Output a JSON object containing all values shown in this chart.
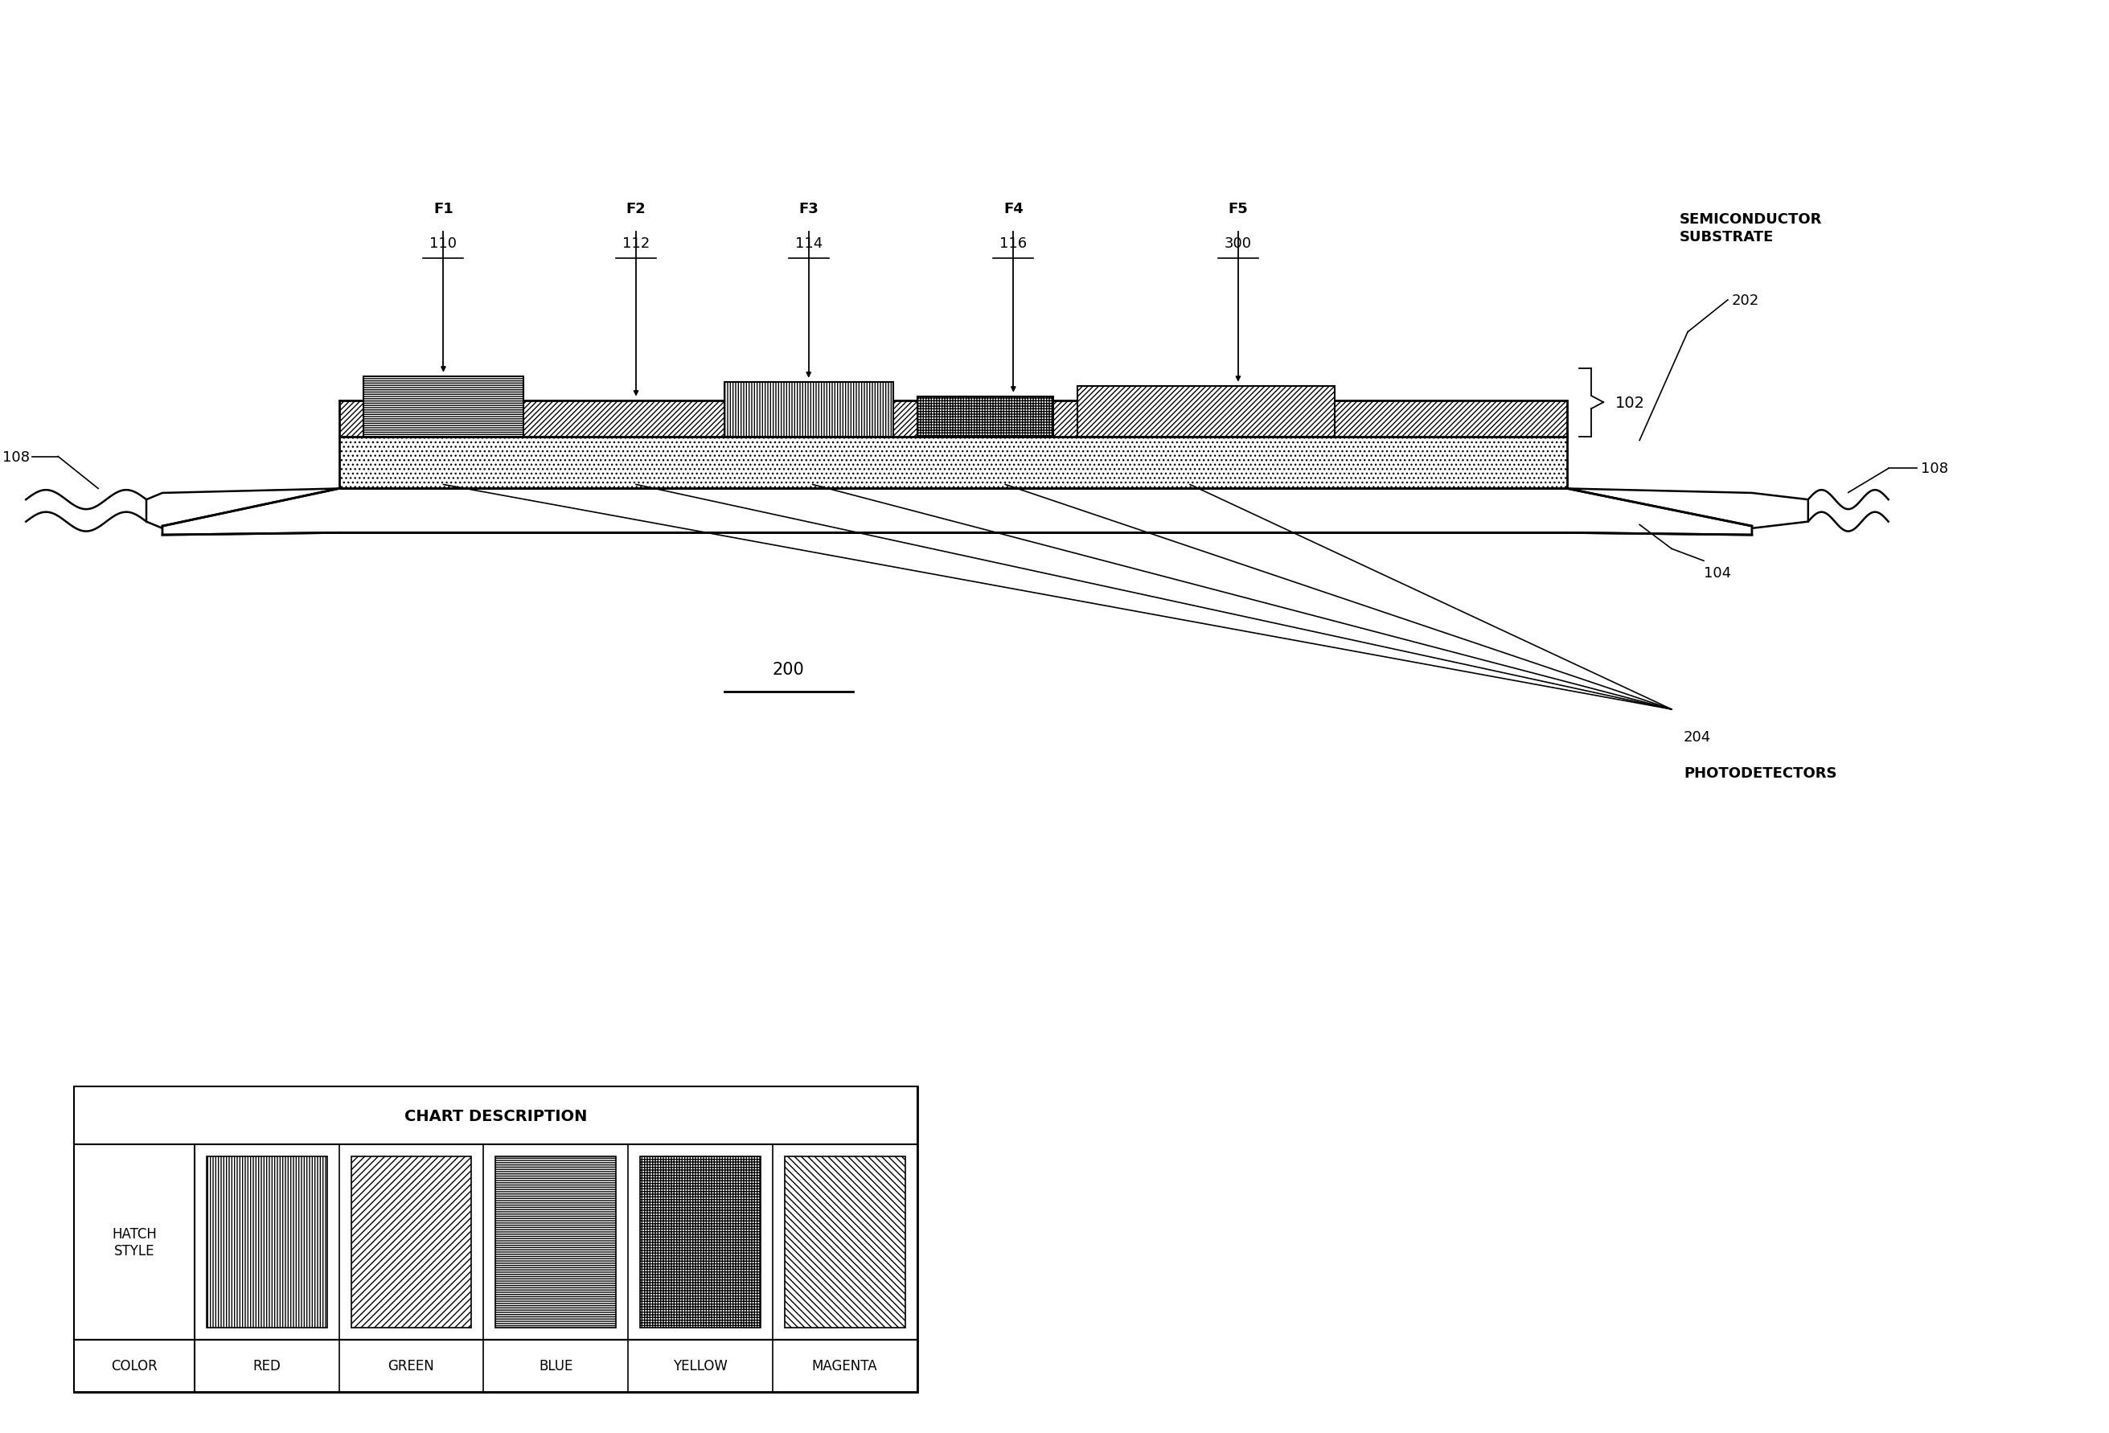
{
  "bg_color": "#ffffff",
  "line_color": "#000000",
  "fig_width": 26.23,
  "fig_height": 17.83,
  "chart_title": "CHART DESCRIPTION",
  "hatch_labels": [
    "RED",
    "GREEN",
    "BLUE",
    "YELLOW",
    "MAGENTA"
  ],
  "hatch_style_label": "HATCH\nSTYLE",
  "color_label": "COLOR",
  "filter_labels": [
    "F1\n110",
    "F2\n112",
    "F3\n114",
    "F4\n116",
    "F5\n300"
  ]
}
